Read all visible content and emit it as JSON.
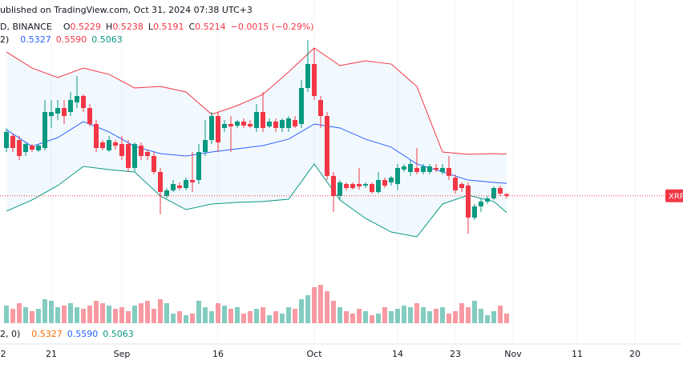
{
  "chart_data": {
    "type": "candlestick",
    "header": "ublished on TradingView.com, Oct 31, 2024 07:38 UTC+3",
    "symbol": "D, BINANCE",
    "ohlc_labels": [
      "O",
      "H",
      "L",
      "C"
    ],
    "change": "−0.0015 (−0.29%)",
    "bb_label": "2)",
    "bb_legend": [
      "0.5327",
      "0.5590",
      "0.5063"
    ],
    "lower_label": "2, 0)",
    "lower_legend": [
      "0.5327",
      "0.5590",
      "0.5063"
    ],
    "price_label": "XRP",
    "up_color": "#089981",
    "down_color": "#f23645",
    "ylim": [
      0.4526,
      0.6981
    ],
    "volume_lim": [
      0,
      1000
    ],
    "xticks": [
      {
        "value": "08-12",
        "label": "2"
      },
      {
        "value": "08-21",
        "label": "21"
      },
      {
        "value": "09-01",
        "label": "Sep"
      },
      {
        "value": "09-16",
        "label": "16"
      },
      {
        "value": "10-01",
        "label": "Oct"
      },
      {
        "value": "10-14",
        "label": "14"
      },
      {
        "value": "10-23",
        "label": "23"
      },
      {
        "value": "11-01",
        "label": "Nov"
      },
      {
        "value": "11-11",
        "label": "11"
      },
      {
        "value": "11-20",
        "label": "20"
      }
    ],
    "x": [
      "08-14",
      "08-15",
      "08-16",
      "08-17",
      "08-18",
      "08-19",
      "08-20",
      "08-21",
      "08-22",
      "08-23",
      "08-24",
      "08-25",
      "08-26",
      "08-27",
      "08-28",
      "08-29",
      "08-30",
      "08-31",
      "09-01",
      "09-02",
      "09-03",
      "09-04",
      "09-05",
      "09-06",
      "09-07",
      "09-08",
      "09-09",
      "09-10",
      "09-11",
      "09-12",
      "09-13",
      "09-14",
      "09-15",
      "09-16",
      "09-17",
      "09-18",
      "09-19",
      "09-20",
      "09-21",
      "09-22",
      "09-23",
      "09-24",
      "09-25",
      "09-26",
      "09-27",
      "09-28",
      "09-29",
      "09-30",
      "10-01",
      "10-02",
      "10-03",
      "10-04",
      "10-05",
      "10-06",
      "10-07",
      "10-08",
      "10-09",
      "10-10",
      "10-11",
      "10-12",
      "10-13",
      "10-14",
      "10-15",
      "10-16",
      "10-17",
      "10-18",
      "10-19",
      "10-20",
      "10-21",
      "10-22",
      "10-23",
      "10-24",
      "10-25",
      "10-26",
      "10-27",
      "10-28",
      "10-29",
      "10-30",
      "10-31"
    ],
    "ohlc": [
      [
        0.5645,
        0.5826,
        0.5609,
        0.579
      ],
      [
        0.5754,
        0.5775,
        0.5609,
        0.5645
      ],
      [
        0.5717,
        0.5754,
        0.5537,
        0.5573
      ],
      [
        0.5609,
        0.5696,
        0.5573,
        0.5681
      ],
      [
        0.5667,
        0.5681,
        0.5609,
        0.5631
      ],
      [
        0.5624,
        0.5681,
        0.5609,
        0.5667
      ],
      [
        0.5645,
        0.6078,
        0.5624,
        0.597
      ],
      [
        0.5934,
        0.6078,
        0.5826,
        0.597
      ],
      [
        0.5956,
        0.6078,
        0.5898,
        0.6006
      ],
      [
        0.6006,
        0.6078,
        0.5862,
        0.5934
      ],
      [
        0.597,
        0.6151,
        0.5934,
        0.6078
      ],
      [
        0.6057,
        0.6295,
        0.6006,
        0.6115
      ],
      [
        0.6115,
        0.6129,
        0.597,
        0.6006
      ],
      [
        0.6006,
        0.6042,
        0.584,
        0.5862
      ],
      [
        0.5862,
        0.5898,
        0.5609,
        0.5645
      ],
      [
        0.5696,
        0.5717,
        0.5624,
        0.5645
      ],
      [
        0.5624,
        0.5754,
        0.5609,
        0.5717
      ],
      [
        0.5696,
        0.5717,
        0.5631,
        0.5667
      ],
      [
        0.5681,
        0.5754,
        0.5537,
        0.5573
      ],
      [
        0.5681,
        0.5717,
        0.5429,
        0.5465
      ],
      [
        0.5465,
        0.5696,
        0.5429,
        0.5681
      ],
      [
        0.5667,
        0.5696,
        0.5537,
        0.5573
      ],
      [
        0.5609,
        0.5631,
        0.5537,
        0.5573
      ],
      [
        0.5573,
        0.5609,
        0.5407,
        0.5429
      ],
      [
        0.5429,
        0.5465,
        0.5046,
        0.5248
      ],
      [
        0.5212,
        0.5284,
        0.519,
        0.5263
      ],
      [
        0.5263,
        0.5356,
        0.5248,
        0.532
      ],
      [
        0.5306,
        0.5335,
        0.5263,
        0.5284
      ],
      [
        0.5284,
        0.5378,
        0.5263,
        0.5356
      ],
      [
        0.5356,
        0.5609,
        0.5248,
        0.5335
      ],
      [
        0.5356,
        0.5681,
        0.532,
        0.5609
      ],
      [
        0.5609,
        0.5898,
        0.5573,
        0.5717
      ],
      [
        0.5717,
        0.597,
        0.5681,
        0.5934
      ],
      [
        0.5934,
        0.597,
        0.5609,
        0.5696
      ],
      [
        0.5826,
        0.5898,
        0.579,
        0.5862
      ],
      [
        0.5862,
        0.5934,
        0.5609,
        0.584
      ],
      [
        0.5847,
        0.5898,
        0.5826,
        0.5884
      ],
      [
        0.5884,
        0.5912,
        0.5826,
        0.5847
      ],
      [
        0.5862,
        0.5898,
        0.5826,
        0.584
      ],
      [
        0.5826,
        0.6042,
        0.579,
        0.597
      ],
      [
        0.597,
        0.6151,
        0.579,
        0.5826
      ],
      [
        0.584,
        0.5912,
        0.5826,
        0.5884
      ],
      [
        0.5884,
        0.5912,
        0.579,
        0.5826
      ],
      [
        0.5826,
        0.5912,
        0.579,
        0.5898
      ],
      [
        0.5826,
        0.5934,
        0.579,
        0.5912
      ],
      [
        0.5898,
        0.5934,
        0.5826,
        0.584
      ],
      [
        0.5862,
        0.6259,
        0.5826,
        0.6187
      ],
      [
        0.6187,
        0.662,
        0.6151,
        0.6403
      ],
      [
        0.6403,
        0.6548,
        0.6078,
        0.6115
      ],
      [
        0.6078,
        0.6115,
        0.5826,
        0.5934
      ],
      [
        0.5934,
        0.597,
        0.5356,
        0.5393
      ],
      [
        0.5393,
        0.5429,
        0.5068,
        0.5212
      ],
      [
        0.5212,
        0.5356,
        0.5176,
        0.5335
      ],
      [
        0.532,
        0.5335,
        0.5263,
        0.5284
      ],
      [
        0.532,
        0.5335,
        0.527,
        0.5284
      ],
      [
        0.532,
        0.5465,
        0.527,
        0.5299
      ],
      [
        0.5306,
        0.5335,
        0.5284,
        0.532
      ],
      [
        0.532,
        0.5335,
        0.5234,
        0.5248
      ],
      [
        0.5248,
        0.5429,
        0.5234,
        0.5356
      ],
      [
        0.5356,
        0.5378,
        0.5284,
        0.5306
      ],
      [
        0.5335,
        0.5393,
        0.5306,
        0.5378
      ],
      [
        0.532,
        0.5501,
        0.5263,
        0.5465
      ],
      [
        0.545,
        0.5501,
        0.5429,
        0.5479
      ],
      [
        0.5429,
        0.5537,
        0.5393,
        0.5501
      ],
      [
        0.5465,
        0.5645,
        0.5407,
        0.5429
      ],
      [
        0.5429,
        0.5501,
        0.5407,
        0.5479
      ],
      [
        0.5429,
        0.5501,
        0.5407,
        0.5479
      ],
      [
        0.5465,
        0.5501,
        0.5429,
        0.545
      ],
      [
        0.5429,
        0.5501,
        0.5407,
        0.5465
      ],
      [
        0.5465,
        0.5573,
        0.5356,
        0.5393
      ],
      [
        0.5378,
        0.5407,
        0.5234,
        0.5263
      ],
      [
        0.532,
        0.5335,
        0.5248,
        0.5284
      ],
      [
        0.5306,
        0.5335,
        0.4873,
        0.5017
      ],
      [
        0.5017,
        0.514,
        0.4995,
        0.5118
      ],
      [
        0.5118,
        0.519,
        0.5068,
        0.5162
      ],
      [
        0.5162,
        0.5212,
        0.514,
        0.519
      ],
      [
        0.519,
        0.5299,
        0.5176,
        0.5284
      ],
      [
        0.5284,
        0.5306,
        0.5212,
        0.5234
      ],
      [
        0.5229,
        0.5238,
        0.5191,
        0.5214
      ]
    ],
    "volume": [
      220,
      180,
      250,
      200,
      150,
      180,
      300,
      280,
      200,
      220,
      250,
      200,
      180,
      220,
      280,
      250,
      220,
      180,
      200,
      150,
      220,
      250,
      280,
      180,
      300,
      250,
      120,
      150,
      100,
      120,
      280,
      200,
      150,
      250,
      220,
      180,
      200,
      120,
      150,
      180,
      200,
      100,
      150,
      120,
      200,
      180,
      300,
      350,
      450,
      480,
      400,
      280,
      200,
      150,
      120,
      180,
      150,
      100,
      120,
      200,
      150,
      180,
      220,
      200,
      250,
      200,
      150,
      180,
      200,
      120,
      150,
      250,
      200,
      280,
      180,
      100,
      150,
      220,
      120
    ],
    "bands": {
      "x": [
        "08-14",
        "08-18",
        "08-22",
        "08-26",
        "08-30",
        "09-03",
        "09-07",
        "09-11",
        "09-15",
        "09-19",
        "09-23",
        "09-27",
        "10-01",
        "10-05",
        "10-09",
        "10-13",
        "10-17",
        "10-21",
        "10-25",
        "10-29",
        "10-31"
      ],
      "fill": "rgba(33,150,243,0.06)",
      "series": [
        {
          "color": "#f23645",
          "values": [
            0.6512,
            0.6367,
            0.6281,
            0.6367,
            0.631,
            0.6187,
            0.6201,
            0.6151,
            0.5949,
            0.6028,
            0.6129,
            0.6331,
            0.6548,
            0.6389,
            0.6432,
            0.6403,
            0.6201,
            0.5609,
            0.5588,
            0.5595,
            0.559
          ]
        },
        {
          "color": "#2962ff",
          "values": [
            0.5811,
            0.566,
            0.5739,
            0.5884,
            0.579,
            0.566,
            0.5595,
            0.5573,
            0.5609,
            0.5638,
            0.5667,
            0.5725,
            0.5862,
            0.5826,
            0.5725,
            0.5653,
            0.5501,
            0.5429,
            0.5356,
            0.5335,
            0.5327
          ]
        },
        {
          "color": "#089981",
          "values": [
            0.5075,
            0.5176,
            0.5306,
            0.5479,
            0.545,
            0.5429,
            0.5212,
            0.5089,
            0.514,
            0.5154,
            0.5162,
            0.5183,
            0.5501,
            0.5176,
            0.501,
            0.4887,
            0.4844,
            0.514,
            0.5219,
            0.5162,
            0.5063
          ]
        }
      ]
    }
  }
}
